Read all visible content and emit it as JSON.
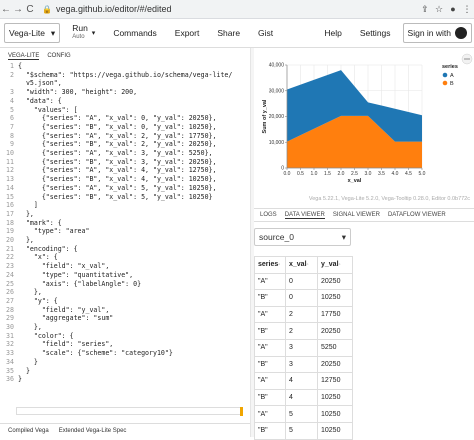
{
  "browser": {
    "url": "vega.github.io/editor/#/edited",
    "back": "←",
    "forward": "→",
    "reload": "C",
    "lock": "🔒"
  },
  "toolbar": {
    "mode": "Vega-Lite",
    "mode_arrow": "▾",
    "run": "Run",
    "run_sub": "Auto",
    "run_arrow": "▾",
    "commands": "Commands",
    "export": "Export",
    "share": "Share",
    "gist": "Gist",
    "help": "Help",
    "settings": "Settings",
    "signin": "Sign in with"
  },
  "editor": {
    "tabs": [
      "VEGA-LITE",
      "CONFIG"
    ],
    "lines": [
      {
        "n": "1",
        "t": "{"
      },
      {
        "n": "2",
        "t": "  \"$schema\": \"https://vega.github.io/schema/vega-lite/"
      },
      {
        "n": "",
        "t": "  v5.json\","
      },
      {
        "n": "3",
        "t": "  \"width\": 300, \"height\": 200,"
      },
      {
        "n": "4",
        "t": "  \"data\": {"
      },
      {
        "n": "5",
        "t": "    \"values\": ["
      },
      {
        "n": "6",
        "t": "      {\"series\": \"A\", \"x_val\": 0, \"y_val\": 20250},"
      },
      {
        "n": "7",
        "t": "      {\"series\": \"B\", \"x_val\": 0, \"y_val\": 10250},"
      },
      {
        "n": "8",
        "t": "      {\"series\": \"A\", \"x_val\": 2, \"y_val\": 17750},"
      },
      {
        "n": "9",
        "t": "      {\"series\": \"B\", \"x_val\": 2, \"y_val\": 20250},"
      },
      {
        "n": "10",
        "t": "      {\"series\": \"A\", \"x_val\": 3, \"y_val\": 5250},"
      },
      {
        "n": "11",
        "t": "      {\"series\": \"B\", \"x_val\": 3, \"y_val\": 20250},"
      },
      {
        "n": "12",
        "t": "      {\"series\": \"A\", \"x_val\": 4, \"y_val\": 12750},"
      },
      {
        "n": "13",
        "t": "      {\"series\": \"B\", \"x_val\": 4, \"y_val\": 10250},"
      },
      {
        "n": "14",
        "t": "      {\"series\": \"A\", \"x_val\": 5, \"y_val\": 10250},"
      },
      {
        "n": "15",
        "t": "      {\"series\": \"B\", \"x_val\": 5, \"y_val\": 10250}"
      },
      {
        "n": "16",
        "t": "    ]"
      },
      {
        "n": "17",
        "t": "  },"
      },
      {
        "n": "18",
        "t": "  \"mark\": {"
      },
      {
        "n": "19",
        "t": "    \"type\": \"area\""
      },
      {
        "n": "20",
        "t": "  },"
      },
      {
        "n": "21",
        "t": "  \"encoding\": {"
      },
      {
        "n": "22",
        "t": "    \"x\": {"
      },
      {
        "n": "23",
        "t": "      \"field\": \"x_val\","
      },
      {
        "n": "24",
        "t": "      \"type\": \"quantitative\","
      },
      {
        "n": "25",
        "t": "      \"axis\": {\"labelAngle\": 0}"
      },
      {
        "n": "26",
        "t": "    },"
      },
      {
        "n": "27",
        "t": "    \"y\": {"
      },
      {
        "n": "28",
        "t": "      \"field\": \"y_val\","
      },
      {
        "n": "29",
        "t": "      \"aggregate\": \"sum\""
      },
      {
        "n": "30",
        "t": "    },"
      },
      {
        "n": "31",
        "t": "    \"color\": {"
      },
      {
        "n": "32",
        "t": "      \"field\": \"series\","
      },
      {
        "n": "33",
        "t": "      \"scale\": {\"scheme\": \"category10\"}"
      },
      {
        "n": "34",
        "t": "    }"
      },
      {
        "n": "35",
        "t": "  }"
      },
      {
        "n": "36",
        "t": "}"
      }
    ],
    "bottom_tabs": [
      "Compiled Vega",
      "Extended Vega-Lite Spec"
    ]
  },
  "vega_footer": "Vega 5.22.1, Vega-Lite 5.2.0, Vega-Tooltip 0.28.0, Editor 0.0b772c",
  "chart_data": {
    "type": "area",
    "x": [
      0,
      2,
      3,
      4,
      5
    ],
    "x_ticks": [
      "0.0",
      "0.5",
      "1.0",
      "1.5",
      "2.0",
      "2.5",
      "3.0",
      "3.5",
      "4.0",
      "4.5",
      "5.0"
    ],
    "xlabel": "x_val",
    "ylabel": "Sum of y_val",
    "y_ticks": [
      "0",
      "10,000",
      "20,000",
      "30,000",
      "40,000"
    ],
    "ylim": [
      0,
      40000
    ],
    "stacked": true,
    "series": [
      {
        "name": "A",
        "values": [
          20250,
          17750,
          5250,
          12750,
          10250
        ],
        "color": "#1f77b4"
      },
      {
        "name": "B",
        "values": [
          10250,
          20250,
          20250,
          10250,
          10250
        ],
        "color": "#ff7f0e"
      }
    ],
    "legend_title": "series",
    "legend_position": "right"
  },
  "dataviewer": {
    "tabs": [
      "LOGS",
      "DATA VIEWER",
      "SIGNAL VIEWER",
      "DATAFLOW VIEWER"
    ],
    "source": "source_0",
    "source_arrow": "▾",
    "columns": [
      "series",
      "x_val",
      "y_val"
    ],
    "sort_icon": "◦",
    "rows": [
      [
        "\"A\"",
        "0",
        "20250"
      ],
      [
        "\"B\"",
        "0",
        "10250"
      ],
      [
        "\"A\"",
        "2",
        "17750"
      ],
      [
        "\"B\"",
        "2",
        "20250"
      ],
      [
        "\"A\"",
        "3",
        "5250"
      ],
      [
        "\"B\"",
        "3",
        "20250"
      ],
      [
        "\"A\"",
        "4",
        "12750"
      ],
      [
        "\"B\"",
        "4",
        "10250"
      ],
      [
        "\"A\"",
        "5",
        "10250"
      ],
      [
        "\"B\"",
        "5",
        "10250"
      ]
    ]
  }
}
